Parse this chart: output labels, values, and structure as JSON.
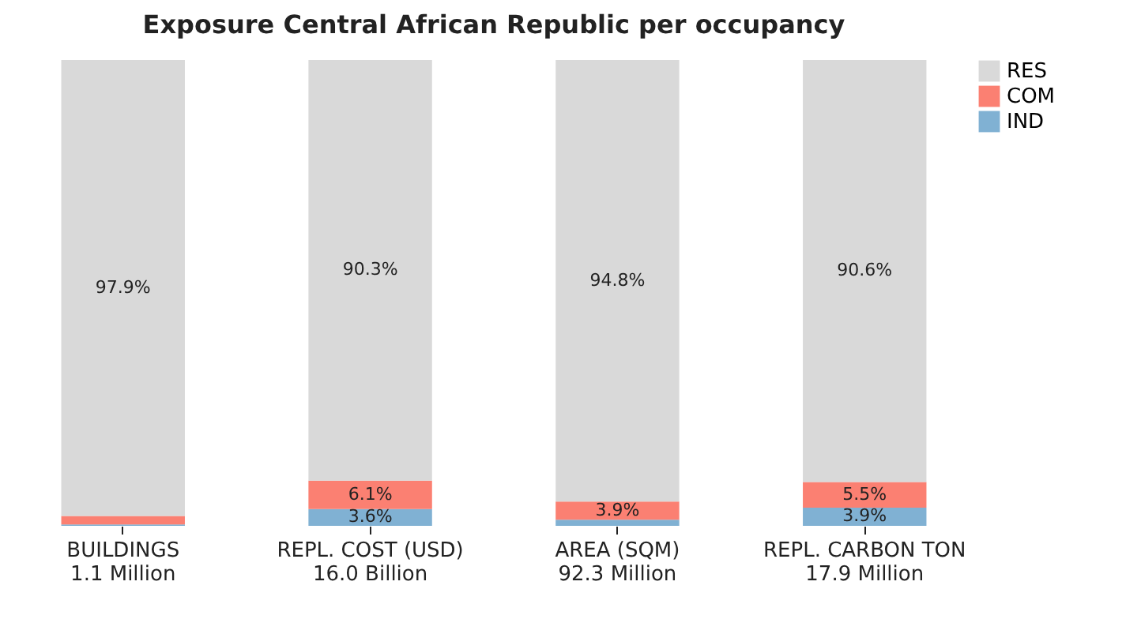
{
  "chart_data": {
    "type": "bar",
    "title": "Exposure Central African Republic per occupancy",
    "categories": [
      "BUILDINGS\n1.1 Million",
      "REPL. COST (USD)\n16.0 Billion",
      "AREA (SQM)\n92.3 Million",
      "REPL. CARBON TON\n17.9 Million"
    ],
    "stacked": true,
    "ylim": [
      0,
      100
    ],
    "tick_labels": "x",
    "legend": "top right",
    "series": [
      {
        "name": "IND",
        "color": "#80b1d3",
        "values": [
          0.3,
          3.6,
          1.3,
          3.9
        ],
        "value_labels": [
          null,
          "3.6%",
          null,
          "3.9%"
        ]
      },
      {
        "name": "COM",
        "color": "#fb8072",
        "values": [
          1.8,
          6.1,
          3.9,
          5.5
        ],
        "value_labels": [
          null,
          "6.1%",
          "3.9%",
          "5.5%"
        ]
      },
      {
        "name": "RES",
        "color": "#d9d9d9",
        "values": [
          97.9,
          90.3,
          94.8,
          90.6
        ],
        "value_labels": [
          "97.9%",
          "90.3%",
          "94.8%",
          "90.6%"
        ]
      }
    ]
  }
}
